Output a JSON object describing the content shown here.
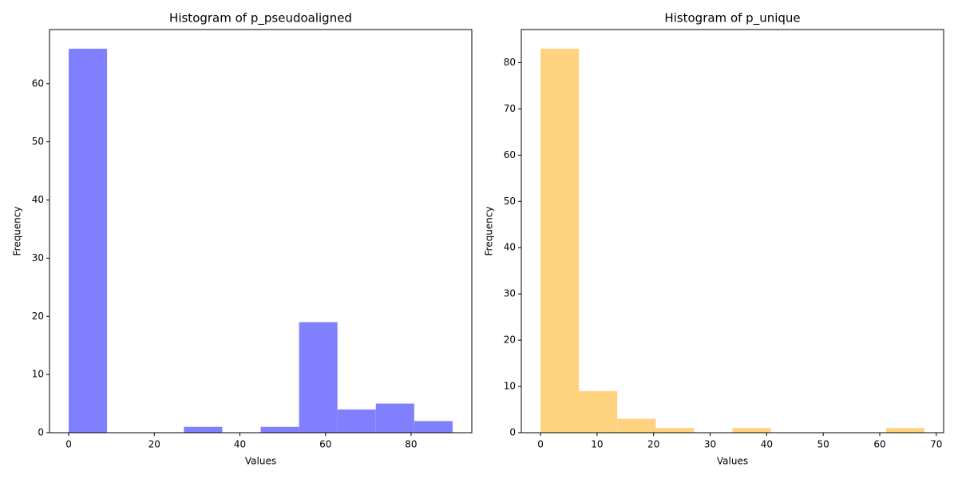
{
  "chart_data": [
    {
      "type": "histogram",
      "title": "Histogram of p_pseudoaligned",
      "x_label": "Values",
      "y_label": "Frequency",
      "bins": [
        0,
        8.97,
        17.94,
        26.91,
        35.88,
        44.85,
        53.82,
        62.79,
        71.76,
        80.73,
        89.7
      ],
      "counts": [
        66,
        0,
        0,
        1,
        0,
        1,
        19,
        4,
        5,
        2
      ],
      "color": "#8080ff",
      "xlim": [
        -4.485,
        94.185
      ],
      "xticks": [
        0,
        20,
        40,
        60,
        80
      ],
      "ylim": [
        0,
        69.3
      ],
      "yticks": [
        0,
        10,
        20,
        30,
        40,
        50,
        60
      ]
    },
    {
      "type": "histogram",
      "title": "Histogram of p_unique",
      "x_label": "Values",
      "y_label": "Frequency",
      "bins": [
        0,
        6.79,
        13.58,
        20.37,
        27.16,
        33.95,
        40.74,
        47.53,
        54.32,
        61.11,
        67.9
      ],
      "counts": [
        83,
        9,
        3,
        1,
        0,
        1,
        0,
        0,
        0,
        1
      ],
      "color": "#ffd280",
      "xlim": [
        -3.395,
        71.295
      ],
      "xticks": [
        0,
        10,
        20,
        30,
        40,
        50,
        60,
        70
      ],
      "ylim": [
        0,
        87.15
      ],
      "yticks": [
        0,
        10,
        20,
        30,
        40,
        50,
        60,
        70,
        80
      ]
    }
  ]
}
